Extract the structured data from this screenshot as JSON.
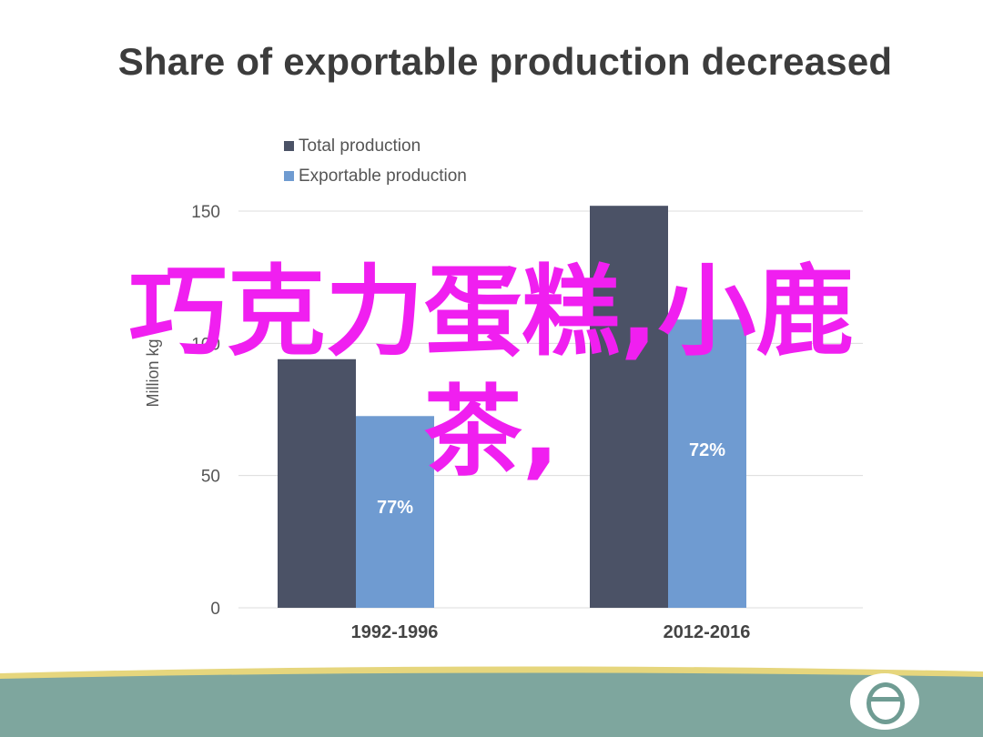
{
  "colors": {
    "total": "#4b5266",
    "exportable": "#6f9bd1",
    "title": "#3c3c3c",
    "overlay": "#f01ff0",
    "footer": "#7ea69e",
    "footer_stripe": "#e6d67d"
  },
  "overlay": {
    "line1": "巧克力蛋糕,小鹿",
    "line2": "茶,"
  },
  "chart_data": {
    "type": "bar",
    "title": "Share of exportable production decreased",
    "ylabel": "Million kg",
    "xlabel": "",
    "categories": [
      "1992-1996",
      "2012-2016"
    ],
    "series": [
      {
        "name": "Total production",
        "values": [
          94,
          152
        ]
      },
      {
        "name": "Exportable production",
        "values": [
          72.5,
          109
        ]
      }
    ],
    "data_labels": [
      "77%",
      "72%"
    ],
    "yticks": [
      0,
      50,
      100,
      150
    ],
    "ytick_labels": [
      "0",
      "50",
      "100",
      "150"
    ],
    "ylim": [
      0,
      150
    ],
    "legend_position": "top-left",
    "grid": true
  }
}
